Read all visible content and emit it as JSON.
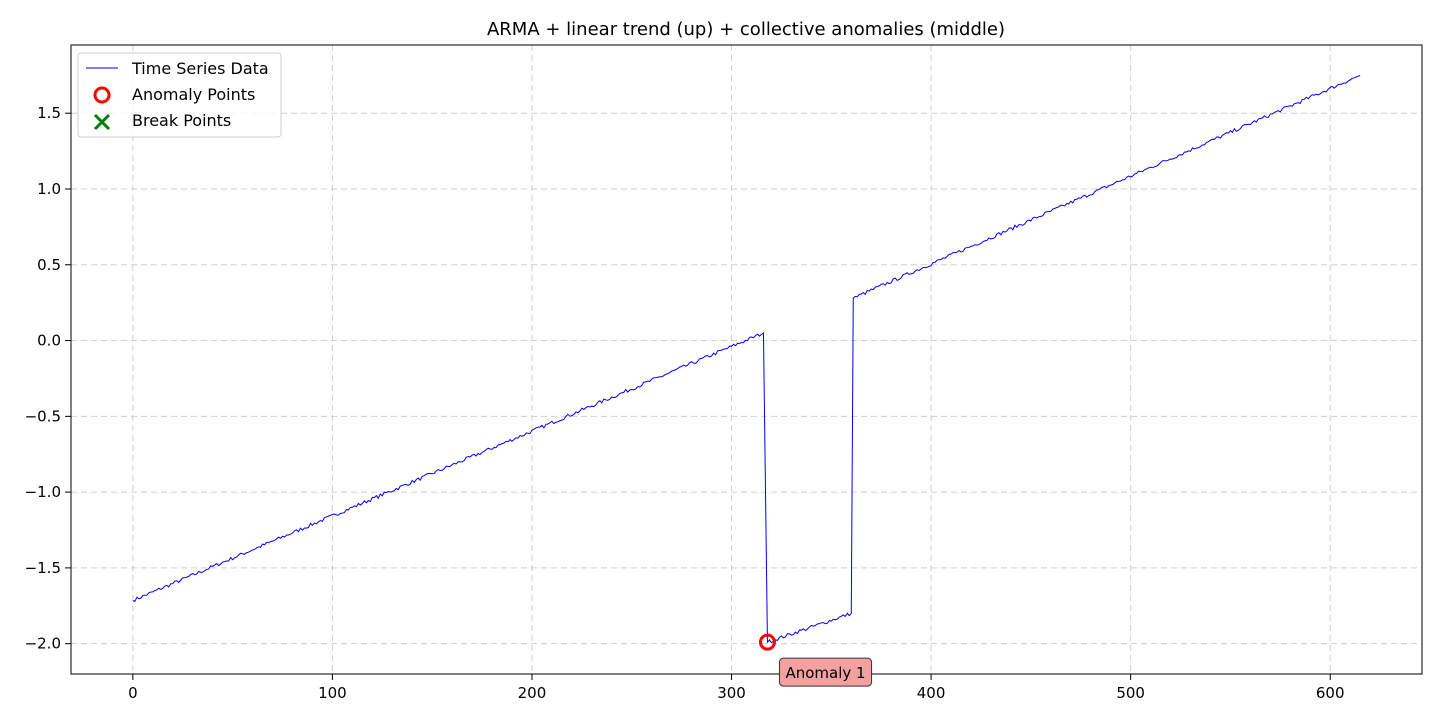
{
  "chart_data": {
    "type": "line",
    "title": "ARMA + linear trend (up) + collective anomalies (middle)",
    "xlabel": "",
    "ylabel": "",
    "xlim": [
      -31,
      646
    ],
    "ylim": [
      -2.2,
      1.95
    ],
    "xticks": [
      0,
      100,
      200,
      300,
      400,
      500,
      600
    ],
    "yticks": [
      -2.0,
      -1.5,
      -1.0,
      -0.5,
      0.0,
      0.5,
      1.0,
      1.5
    ],
    "ytick_labels": [
      "−2.0",
      "−1.5",
      "−1.0",
      "−0.5",
      "0.0",
      "0.5",
      "1.0",
      "1.5"
    ],
    "grid": true,
    "legend_position": "top-left",
    "series": [
      {
        "name": "Time Series Data",
        "color": "#0000ff",
        "segments": [
          {
            "x_start": 0,
            "x_end": 316,
            "y_start": -1.715,
            "y_end": 0.05
          },
          {
            "x_start": 318,
            "x_end": 360,
            "y_start": -1.99,
            "y_end": -1.8
          },
          {
            "x_start": 361,
            "x_end": 615,
            "y_start": 0.28,
            "y_end": 1.75
          }
        ],
        "noise_amplitude": 0.012
      }
    ],
    "anomaly_points": {
      "name": "Anomaly Points",
      "color": "#ff0000",
      "points": [
        {
          "x": 318,
          "y": -1.99
        }
      ]
    },
    "break_points": {
      "name": "Break Points",
      "color": "#008000",
      "points": []
    },
    "annotations": [
      {
        "text": "Anomaly 1",
        "x": 318,
        "y": -1.99,
        "bg_color": "#f4a0a0"
      }
    ]
  }
}
